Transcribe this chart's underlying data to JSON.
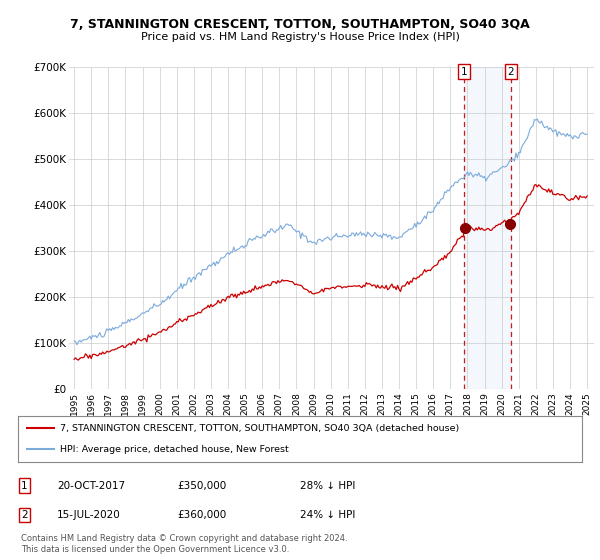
{
  "title": "7, STANNINGTON CRESCENT, TOTTON, SOUTHAMPTON, SO40 3QA",
  "subtitle": "Price paid vs. HM Land Registry's House Price Index (HPI)",
  "legend_line1": "7, STANNINGTON CRESCENT, TOTTON, SOUTHAMPTON, SO40 3QA (detached house)",
  "legend_line2": "HPI: Average price, detached house, New Forest",
  "annotation1_date": "20-OCT-2017",
  "annotation1_price": "£350,000",
  "annotation1_hpi": "28% ↓ HPI",
  "annotation2_date": "15-JUL-2020",
  "annotation2_price": "£360,000",
  "annotation2_hpi": "24% ↓ HPI",
  "footer": "Contains HM Land Registry data © Crown copyright and database right 2024.\nThis data is licensed under the Open Government Licence v3.0.",
  "hpi_color": "#7aabdc",
  "price_color": "#cc0000",
  "bg_color": "#ffffff",
  "plot_bg_color": "#ffffff",
  "grid_color": "#cccccc",
  "ylim": [
    0,
    700000
  ],
  "yticks": [
    0,
    100000,
    200000,
    300000,
    400000,
    500000,
    600000,
    700000
  ],
  "ytick_labels": [
    "£0",
    "£100K",
    "£200K",
    "£300K",
    "£400K",
    "£500K",
    "£600K",
    "£700K"
  ],
  "sale1_year": 2017.8,
  "sale1_price": 350000,
  "sale2_year": 2020.54,
  "sale2_price": 360000
}
